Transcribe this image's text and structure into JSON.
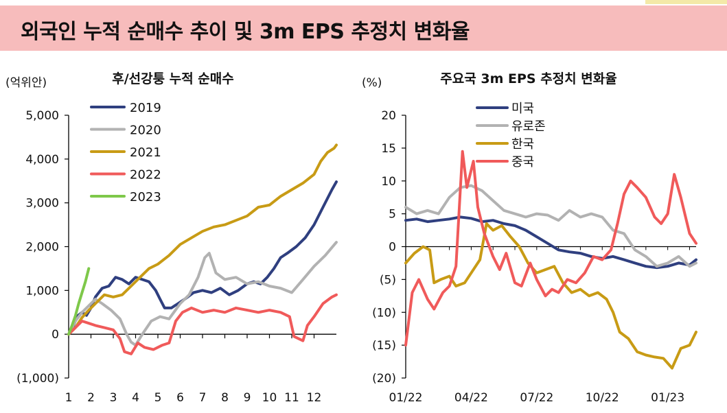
{
  "header": {
    "title": "외국인 누적 순매수 추이 및 3m EPS 추정치 변화율"
  },
  "chart_data": [
    {
      "type": "line",
      "title": "후/선강퉁 누적 순매수",
      "ylabel": "(억위안)",
      "xlabel": "",
      "ylim": [
        -1000,
        5000
      ],
      "xlim": [
        1,
        13
      ],
      "x_ticks": [
        "1",
        "2",
        "3",
        "4",
        "5",
        "6",
        "7",
        "8",
        "9",
        "10",
        "11",
        "12"
      ],
      "y_ticks": [
        {
          "value": 5000,
          "label": "5,000"
        },
        {
          "value": 4000,
          "label": "4,000"
        },
        {
          "value": 3000,
          "label": "3,000"
        },
        {
          "value": 2000,
          "label": "2,000"
        },
        {
          "value": 1000,
          "label": "1,000"
        },
        {
          "value": 0,
          "label": "0"
        },
        {
          "value": -1000,
          "label": "(1,000)"
        }
      ],
      "grid": false,
      "legend_position": "top-left",
      "series": [
        {
          "name": "2019",
          "color": "#2f3f7f",
          "x": [
            1,
            1.2,
            1.4,
            1.6,
            1.8,
            2.0,
            2.2,
            2.5,
            2.8,
            3.1,
            3.4,
            3.7,
            4.0,
            4.3,
            4.6,
            4.9,
            5.1,
            5.3,
            5.6,
            5.9,
            6.2,
            6.6,
            7.0,
            7.4,
            7.8,
            8.2,
            8.6,
            9.0,
            9.3,
            9.6,
            9.9,
            10.2,
            10.5,
            10.8,
            11.2,
            11.6,
            12.0,
            12.4,
            12.8,
            13.0
          ],
          "values": [
            0,
            180,
            420,
            500,
            430,
            600,
            850,
            1050,
            1100,
            1300,
            1250,
            1150,
            1300,
            1250,
            1200,
            1000,
            800,
            600,
            600,
            700,
            800,
            950,
            1000,
            950,
            1050,
            900,
            1000,
            1150,
            1200,
            1150,
            1300,
            1500,
            1750,
            1850,
            2000,
            2200,
            2500,
            2900,
            3300,
            3480
          ]
        },
        {
          "name": "2020",
          "color": "#b2b2b2",
          "x": [
            1,
            1.3,
            1.6,
            1.9,
            2.2,
            2.5,
            2.9,
            3.3,
            3.6,
            3.8,
            4.0,
            4.3,
            4.7,
            5.1,
            5.5,
            6.0,
            6.4,
            6.8,
            7.1,
            7.3,
            7.6,
            8.0,
            8.5,
            9.0,
            9.5,
            10.0,
            10.5,
            11.0,
            11.5,
            12.0,
            12.5,
            13.0
          ],
          "values": [
            0,
            300,
            500,
            650,
            800,
            700,
            550,
            350,
            0,
            -180,
            -250,
            0,
            300,
            400,
            350,
            700,
            900,
            1300,
            1750,
            1850,
            1400,
            1250,
            1300,
            1150,
            1200,
            1100,
            1050,
            950,
            1250,
            1550,
            1800,
            2100
          ]
        },
        {
          "name": "2021",
          "color": "#c89b15",
          "x": [
            1,
            1.3,
            1.6,
            1.9,
            2.2,
            2.6,
            3.0,
            3.4,
            3.8,
            4.2,
            4.6,
            5.0,
            5.5,
            6.0,
            6.5,
            7.0,
            7.5,
            8.0,
            8.5,
            9.0,
            9.5,
            10.0,
            10.5,
            11.0,
            11.5,
            12.0,
            12.3,
            12.6,
            12.9,
            13.0
          ],
          "values": [
            0,
            150,
            380,
            550,
            700,
            900,
            850,
            900,
            1100,
            1300,
            1500,
            1600,
            1800,
            2050,
            2200,
            2350,
            2450,
            2500,
            2600,
            2700,
            2900,
            2950,
            3150,
            3300,
            3450,
            3650,
            3950,
            4150,
            4250,
            4320
          ]
        },
        {
          "name": "2022",
          "color": "#f05a5a",
          "x": [
            1,
            1.3,
            1.6,
            1.9,
            2.2,
            2.6,
            3.0,
            3.3,
            3.5,
            3.8,
            4.1,
            4.4,
            4.8,
            5.2,
            5.5,
            5.8,
            6.1,
            6.5,
            7.0,
            7.5,
            8.0,
            8.5,
            9.0,
            9.5,
            10.0,
            10.5,
            10.9,
            11.1,
            11.3,
            11.5,
            11.7,
            12.0,
            12.4,
            12.8,
            13.0
          ],
          "values": [
            0,
            150,
            300,
            250,
            200,
            150,
            100,
            -100,
            -400,
            -450,
            -200,
            -300,
            -350,
            -250,
            -200,
            300,
            500,
            600,
            500,
            550,
            500,
            600,
            550,
            500,
            550,
            500,
            400,
            -50,
            -100,
            -150,
            200,
            400,
            700,
            850,
            900
          ]
        },
        {
          "name": "2023",
          "color": "#7ec84a",
          "x": [
            1,
            1.15,
            1.3,
            1.45,
            1.6,
            1.75,
            1.9
          ],
          "values": [
            0,
            200,
            420,
            700,
            950,
            1200,
            1500
          ]
        }
      ]
    },
    {
      "type": "line",
      "title": "주요국 3m EPS 추정치 변화율",
      "ylabel": "(%)",
      "xlabel": "",
      "ylim": [
        -20,
        20
      ],
      "x_ticks": [
        "01/22",
        "04/22",
        "07/22",
        "10/22",
        "01/23"
      ],
      "y_ticks": [
        {
          "value": 20,
          "label": "20"
        },
        {
          "value": 15,
          "label": "15"
        },
        {
          "value": 10,
          "label": "10"
        },
        {
          "value": 5,
          "label": "5"
        },
        {
          "value": 0,
          "label": "0"
        },
        {
          "value": -5,
          "label": "(5)"
        },
        {
          "value": -10,
          "label": "(10)"
        },
        {
          "value": -15,
          "label": "(15)"
        },
        {
          "value": -20,
          "label": "(20)"
        }
      ],
      "grid": false,
      "legend_position": "top-left",
      "series": [
        {
          "name": "미국",
          "color": "#2f3f7f",
          "x": [
            0,
            0.5,
            1.0,
            1.5,
            2.0,
            2.5,
            3.0,
            3.5,
            4.0,
            4.5,
            5.0,
            5.5,
            6.0,
            6.5,
            7.0,
            7.5,
            8.0,
            8.5,
            9.0,
            9.5,
            10.0,
            10.5,
            11.0,
            11.5,
            12.0,
            12.5,
            13.0,
            13.3
          ],
          "values": [
            4,
            4.2,
            3.8,
            4.0,
            4.2,
            4.5,
            4.3,
            3.8,
            4.0,
            3.5,
            3.2,
            2.5,
            1.5,
            0.5,
            -0.5,
            -0.8,
            -1.0,
            -1.5,
            -1.8,
            -1.5,
            -2.0,
            -2.5,
            -3.0,
            -3.2,
            -3.0,
            -2.5,
            -2.8,
            -2.0
          ]
        },
        {
          "name": "유로존",
          "color": "#b2b2b2",
          "x": [
            0,
            0.5,
            1.0,
            1.5,
            2.0,
            2.5,
            3.0,
            3.5,
            4.0,
            4.5,
            5.0,
            5.5,
            6.0,
            6.5,
            7.0,
            7.5,
            8.0,
            8.5,
            9.0,
            9.5,
            10.0,
            10.5,
            11.0,
            11.5,
            12.0,
            12.5,
            13.0,
            13.3
          ],
          "values": [
            6,
            5.0,
            5.5,
            5.0,
            7.5,
            9.0,
            9.3,
            8.5,
            7.0,
            5.5,
            5.0,
            4.5,
            5.0,
            4.8,
            4.0,
            5.5,
            4.5,
            5.0,
            4.5,
            2.5,
            2.0,
            -0.5,
            -1.5,
            -3.0,
            -2.5,
            -1.5,
            -3.0,
            -2.5
          ]
        },
        {
          "name": "한국",
          "color": "#c89b15",
          "x": [
            0,
            0.4,
            0.8,
            1.1,
            1.3,
            1.6,
            2.0,
            2.3,
            2.7,
            3.0,
            3.4,
            3.7,
            4.0,
            4.4,
            4.8,
            5.2,
            5.6,
            6.0,
            6.4,
            6.8,
            7.2,
            7.6,
            8.0,
            8.4,
            8.8,
            9.2,
            9.5,
            9.8,
            10.2,
            10.6,
            11.0,
            11.4,
            11.8,
            12.2,
            12.6,
            13.0,
            13.3
          ],
          "values": [
            -2.5,
            -1.0,
            0.0,
            -0.5,
            -5.5,
            -5.0,
            -4.5,
            -6.0,
            -5.5,
            -4.0,
            -2.0,
            3.5,
            2.5,
            3.2,
            1.5,
            0.0,
            -2.5,
            -4.0,
            -3.5,
            -3.0,
            -5.5,
            -7.0,
            -6.5,
            -7.5,
            -7.0,
            -8.0,
            -10.0,
            -13.0,
            -14.0,
            -16.0,
            -16.5,
            -16.8,
            -17.0,
            -18.5,
            -15.5,
            -15.0,
            -13.0
          ]
        },
        {
          "name": "중국",
          "color": "#f05a5a",
          "x": [
            0,
            0.3,
            0.6,
            1.0,
            1.3,
            1.7,
            2.0,
            2.3,
            2.6,
            2.8,
            3.1,
            3.3,
            3.6,
            4.0,
            4.3,
            4.6,
            5.0,
            5.3,
            5.7,
            6.0,
            6.4,
            6.7,
            7.0,
            7.4,
            7.8,
            8.2,
            8.6,
            9.0,
            9.4,
            9.7,
            10.0,
            10.3,
            10.6,
            11.0,
            11.4,
            11.7,
            12.0,
            12.3,
            12.6,
            13.0,
            13.3
          ],
          "values": [
            -15,
            -7.0,
            -5.0,
            -8.0,
            -9.5,
            -7.0,
            -6.0,
            -3.0,
            14.5,
            9.0,
            13.0,
            6.0,
            2.0,
            -1.5,
            -3.5,
            -1.0,
            -5.5,
            -6.0,
            -2.5,
            -5.0,
            -7.5,
            -6.5,
            -7.0,
            -5.0,
            -5.5,
            -4.0,
            -1.5,
            -2.0,
            -0.5,
            3.5,
            8.0,
            10.0,
            9.0,
            7.5,
            4.5,
            3.5,
            5.0,
            11.0,
            7.5,
            2.0,
            0.5
          ]
        }
      ]
    }
  ]
}
